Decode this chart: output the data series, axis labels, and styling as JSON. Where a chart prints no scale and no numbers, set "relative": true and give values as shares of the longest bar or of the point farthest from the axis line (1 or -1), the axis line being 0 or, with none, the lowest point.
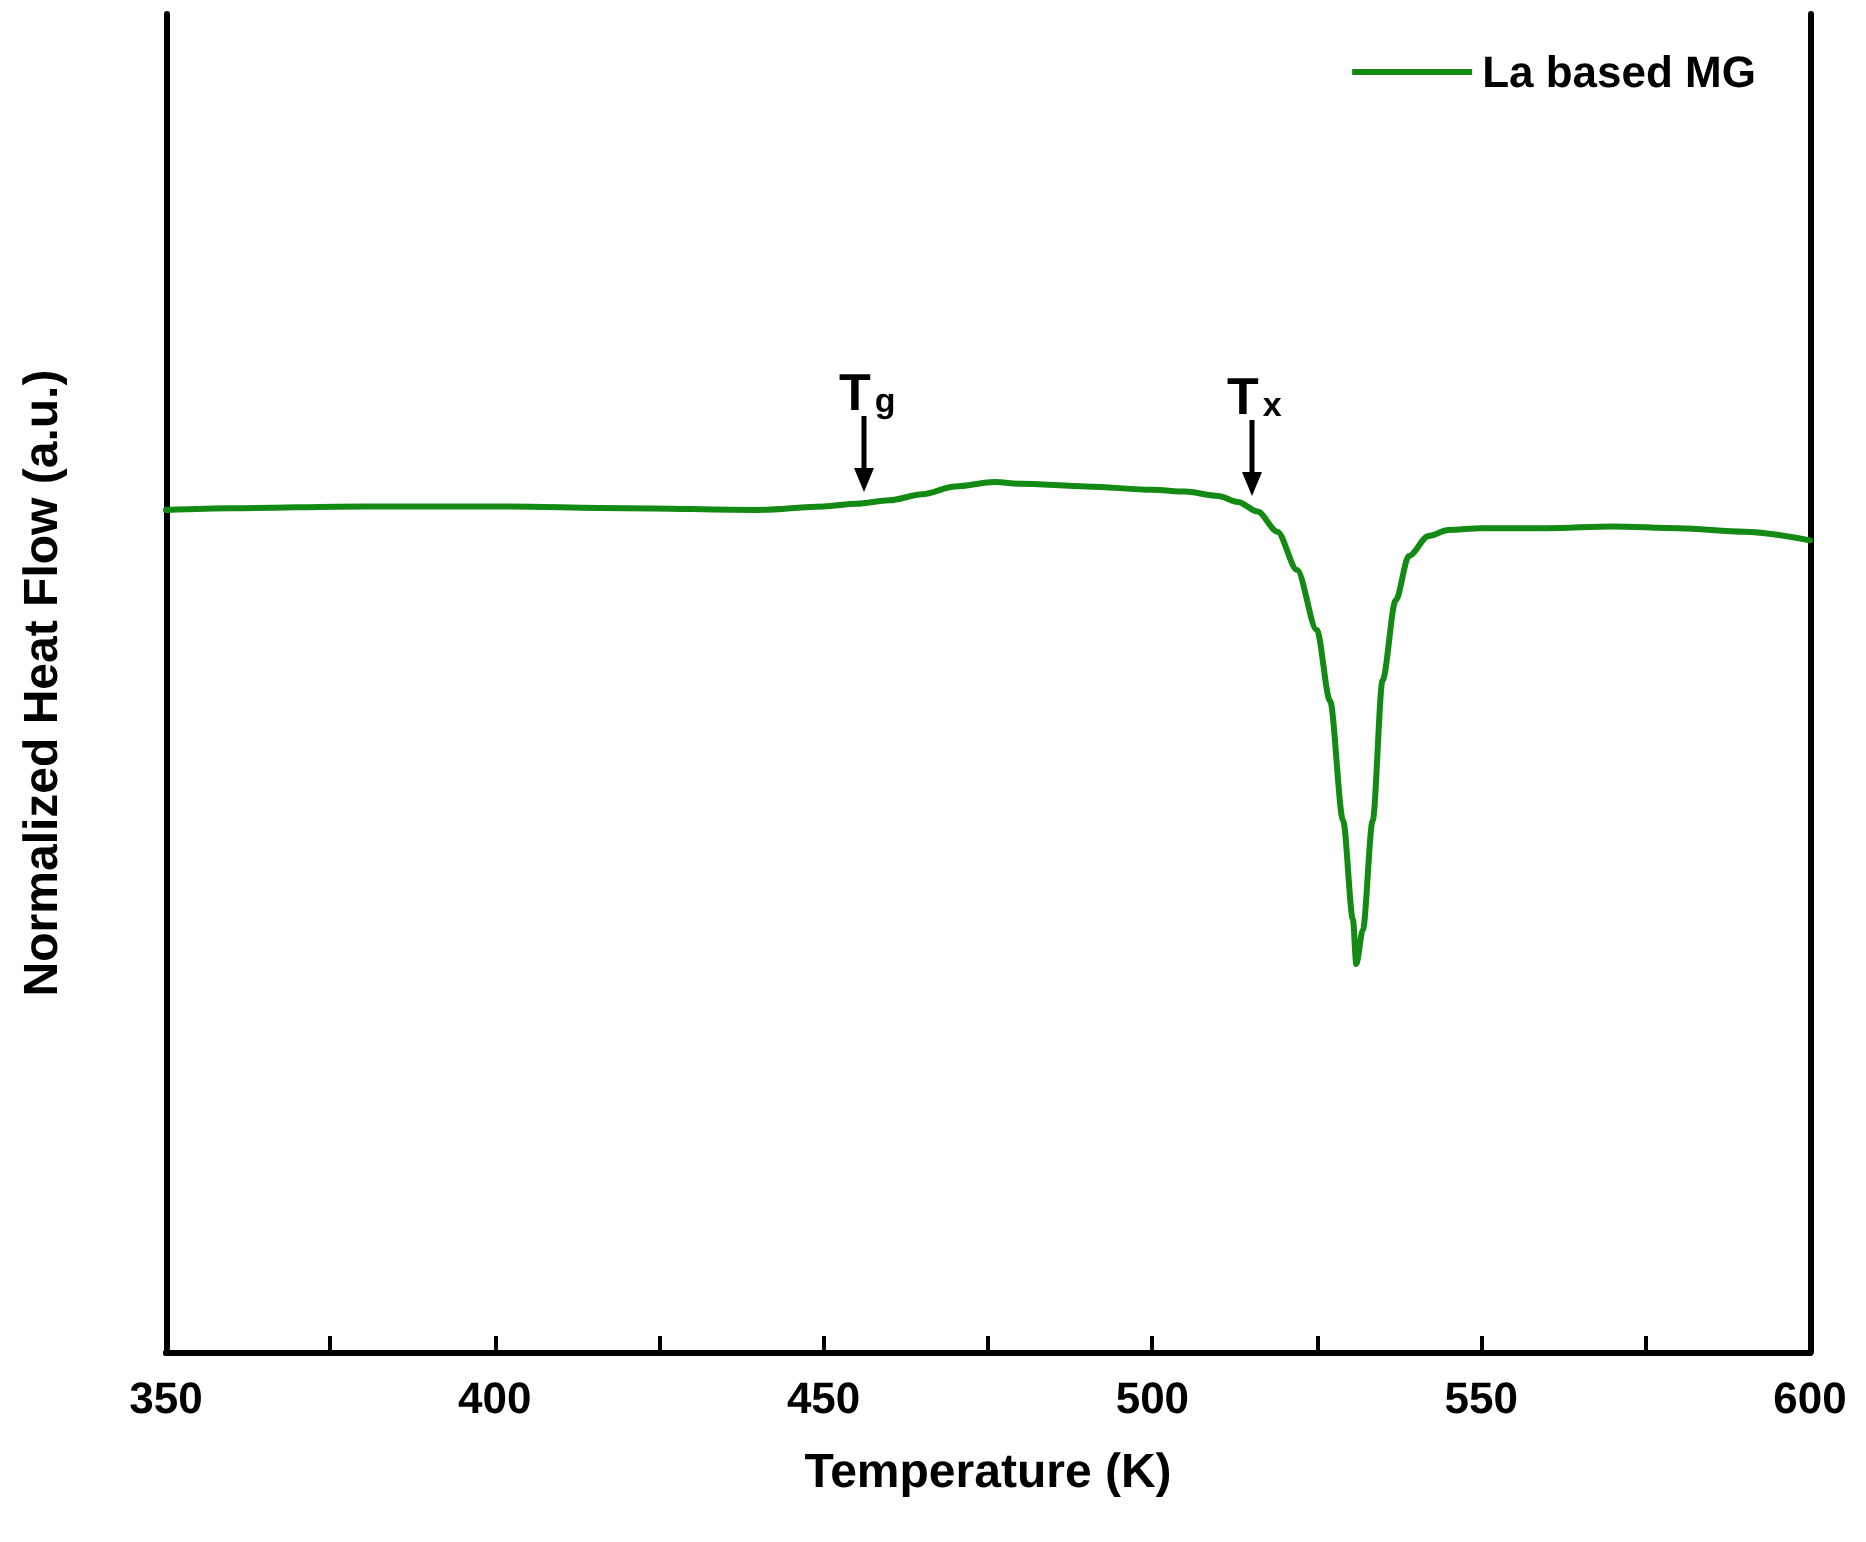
{
  "chart_data": {
    "type": "line",
    "relative": true,
    "xlabel": "Temperature (K)",
    "ylabel": "Normalized Heat Flow (a.u.)",
    "xlim": [
      350,
      600
    ],
    "xticks": [
      350,
      {
        "value": 375,
        "label": null
      },
      400,
      {
        "value": 425,
        "label": null
      },
      450,
      {
        "value": 475,
        "label": null
      },
      500,
      {
        "value": 525,
        "label": null
      },
      550,
      {
        "value": 575,
        "label": null
      },
      600
    ],
    "legend": "top right",
    "grid": false,
    "marker": "none",
    "line_style": "solid",
    "series": [
      {
        "name": "La based MG",
        "color": "#138a13",
        "x": [
          350,
          360,
          380,
          400,
          420,
          440,
          450,
          455,
          460,
          465,
          470,
          476,
          480,
          490,
          500,
          505,
          510,
          513,
          516,
          519,
          522,
          525,
          527,
          529,
          530.5,
          531,
          532,
          533.5,
          535,
          537,
          539,
          542,
          545,
          550,
          560,
          570,
          580,
          590,
          600
        ],
        "values": [
          0.968,
          0.97,
          0.972,
          0.972,
          0.97,
          0.968,
          0.972,
          0.975,
          0.979,
          0.986,
          0.995,
          1.0,
          0.998,
          0.995,
          0.991,
          0.989,
          0.984,
          0.977,
          0.966,
          0.943,
          0.899,
          0.83,
          0.749,
          0.611,
          0.497,
          0.446,
          0.485,
          0.611,
          0.772,
          0.864,
          0.915,
          0.938,
          0.945,
          0.947,
          0.947,
          0.949,
          0.947,
          0.943,
          0.933
        ]
      }
    ],
    "annotations": [
      {
        "text": "T$_{g}$",
        "x": 456,
        "y": 0.975
      },
      {
        "text": "T$_{x}$",
        "x": 515,
        "y": 0.97
      }
    ]
  }
}
